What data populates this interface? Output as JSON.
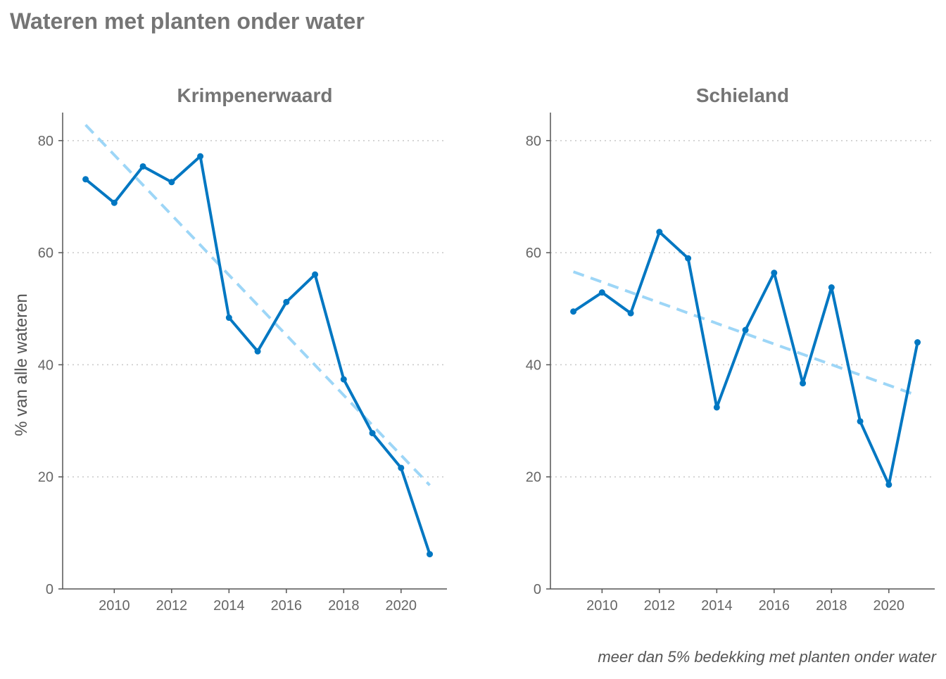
{
  "title": "Wateren met planten onder water",
  "caption": "meer dan 5% bedekking met planten onder water",
  "colors": {
    "line": "#0077c2",
    "trend": "#9dd6f7",
    "text": "#757575",
    "grid": "#c8c8c8",
    "axis": "#555555"
  },
  "chart_data": [
    {
      "type": "line",
      "title": "Krimpenerwaard",
      "ylabel": "% van alle wateren",
      "xlabel": "",
      "ylim": [
        0,
        85
      ],
      "xlim": [
        2008.2,
        2021.6
      ],
      "yticks": [
        0,
        20,
        40,
        60,
        80
      ],
      "xticks": [
        2010,
        2012,
        2014,
        2016,
        2018,
        2020
      ],
      "grid": "horizontal dotted",
      "x": [
        2009,
        2010,
        2011,
        2012,
        2013,
        2014,
        2015,
        2016,
        2017,
        2018,
        2019,
        2020,
        2021
      ],
      "values": [
        73.1,
        68.9,
        75.4,
        72.6,
        77.2,
        48.4,
        42.4,
        51.2,
        56.1,
        37.4,
        27.8,
        21.6,
        6.2
      ],
      "trend": {
        "x": [
          2009,
          2021
        ],
        "values": [
          82.8,
          18.5
        ]
      }
    },
    {
      "type": "line",
      "title": "Schieland",
      "ylabel": "",
      "xlabel": "",
      "ylim": [
        0,
        85
      ],
      "xlim": [
        2008.2,
        2021.6
      ],
      "yticks": [
        0,
        20,
        40,
        60,
        80
      ],
      "xticks": [
        2010,
        2012,
        2014,
        2016,
        2018,
        2020
      ],
      "grid": "horizontal dotted",
      "x": [
        2009,
        2010,
        2011,
        2012,
        2013,
        2014,
        2015,
        2016,
        2017,
        2018,
        2019,
        2020,
        2021
      ],
      "values": [
        49.5,
        52.9,
        49.2,
        63.7,
        59.0,
        32.4,
        46.2,
        56.4,
        36.7,
        53.8,
        29.9,
        18.6,
        44.0
      ],
      "trend": {
        "x": [
          2009,
          2021
        ],
        "values": [
          56.6,
          34.5
        ]
      }
    }
  ]
}
